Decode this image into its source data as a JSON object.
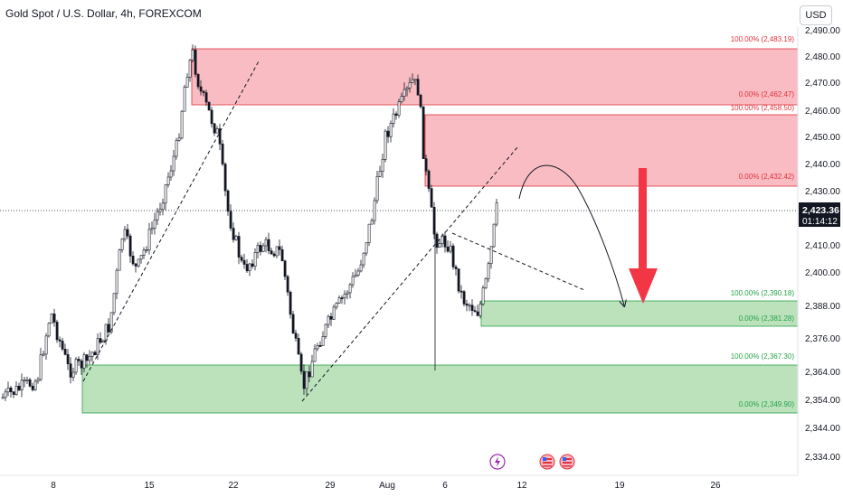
{
  "header": {
    "title": "Gold Spot / U.S. Dollar, 4h, FOREXCOM",
    "currency_button": "USD"
  },
  "colors": {
    "supply_zone": "#f7a5ae",
    "demand_zone": "#a5d8a5",
    "arrow": "#f23645",
    "candle": "#131722"
  },
  "chart_data": {
    "type": "candlestick",
    "title": "Gold Spot / U.S. Dollar, 4h, FOREXCOM",
    "y_ticks": [
      "2,490.00",
      "2,480.00",
      "2,470.00",
      "2,460.00",
      "2,450.00",
      "2,440.00",
      "2,430.00",
      "2,410.00",
      "2,400.00",
      "2,388.00",
      "2,376.00",
      "2,364.00",
      "2,354.00",
      "2,344.00",
      "2,334.00"
    ],
    "x_ticks": [
      "8",
      "15",
      "22",
      "29",
      "Aug",
      "6",
      "12",
      "19",
      "26"
    ],
    "last_price": "2,423.36",
    "countdown": "01:14:12",
    "zones": [
      {
        "kind": "supply",
        "top": "100.00% (2,483.19)",
        "bottom": "0.00% (2,462.47)"
      },
      {
        "kind": "supply",
        "top": "100.00% (2,458.50)",
        "bottom": "0.00% (2,432.42)"
      },
      {
        "kind": "demand",
        "top": "100.00% (2,390.18)",
        "bottom": "0.00% (2,381.28)"
      },
      {
        "kind": "demand",
        "top": "100.00% (2,367.30)",
        "bottom": "0.00% (2,349.90)"
      }
    ],
    "grid": false,
    "legend": "none"
  }
}
